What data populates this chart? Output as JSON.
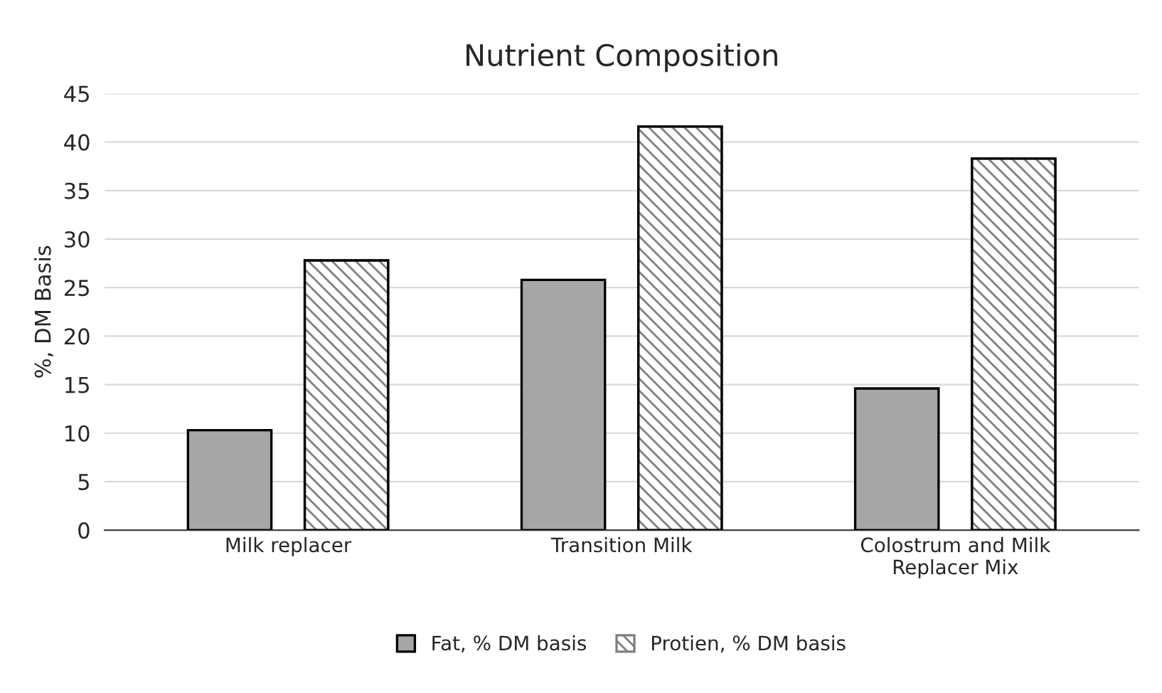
{
  "chart_data": {
    "type": "bar",
    "title": "Nutrient Composition",
    "ylabel": "%, DM Basis",
    "categories": [
      "Milk replacer",
      "Transition Milk",
      "Colostrum and Milk\nReplacer Mix"
    ],
    "series": [
      {
        "name": "Fat, % DM basis",
        "color": "#a6a6a6",
        "values": [
          10.3,
          25.8,
          14.6
        ]
      },
      {
        "name": "Protien, % DM basis",
        "color": "#808080",
        "values": [
          27.8,
          41.6,
          38.3
        ]
      }
    ],
    "ylim": [
      0,
      45
    ],
    "yticks": [
      0,
      5,
      10,
      15,
      20,
      25,
      30,
      35,
      40,
      45
    ],
    "grid": "y",
    "legend": "bottom"
  }
}
